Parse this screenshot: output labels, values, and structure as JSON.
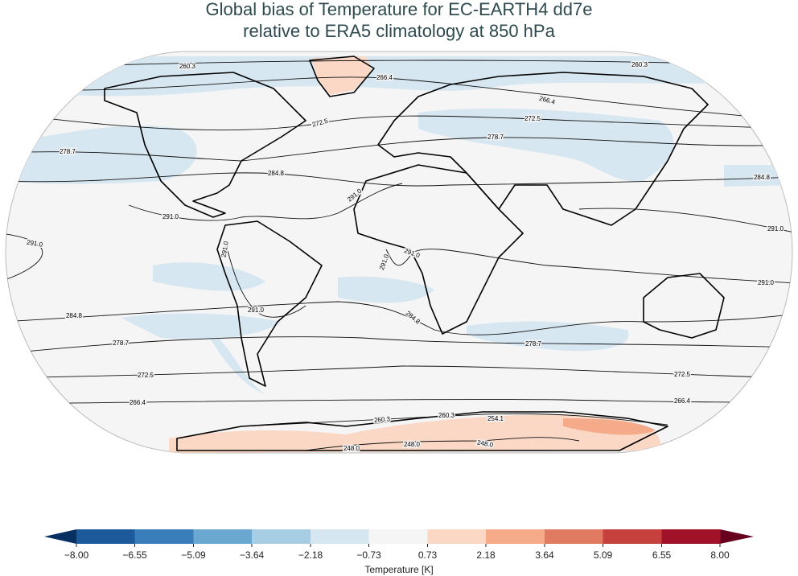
{
  "title": [
    "Global bias of Temperature for EC-EARTH4 dd7e",
    "relative to ERA5 climatology at 850 hPa"
  ],
  "contour_labels": [
    "260.3",
    "266.4",
    "260.3",
    "266.4",
    "272.5",
    "272.5",
    "278.7",
    "278.7",
    "284.8",
    "284.8",
    "291.0",
    "291.0",
    "291.0",
    "291.0",
    "291.0",
    "291.0",
    "291.0",
    "291.0",
    "291.0",
    "284.8",
    "284.8",
    "278.7",
    "278.7",
    "272.5",
    "272.5",
    "266.4",
    "266.4",
    "260.3",
    "260.3",
    "254.1",
    "248.0",
    "248.0",
    "248.0"
  ],
  "colorbar": {
    "label": "Temperature [K]",
    "lim": [
      -8,
      8
    ],
    "ticks": [
      {
        "value": -8,
        "label": "−8.00"
      },
      {
        "value": -6.55,
        "label": "−6.55"
      },
      {
        "value": -5.09,
        "label": "−5.09"
      },
      {
        "value": -3.64,
        "label": "−3.64"
      },
      {
        "value": -2.18,
        "label": "−2.18"
      },
      {
        "value": -0.73,
        "label": "−0.73"
      },
      {
        "value": 0.73,
        "label": "0.73"
      },
      {
        "value": 2.18,
        "label": "2.18"
      },
      {
        "value": 3.64,
        "label": "3.64"
      },
      {
        "value": 5.09,
        "label": "5.09"
      },
      {
        "value": 6.55,
        "label": "6.55"
      },
      {
        "value": 8,
        "label": "8.00"
      }
    ],
    "colors": [
      "#1c5a9b",
      "#3a7dbb",
      "#6aa8d1",
      "#a6cde3",
      "#d7e7f1",
      "#f5f5f5",
      "#fbd8c5",
      "#f5ab8a",
      "#e07b61",
      "#c6413e",
      "#a11228"
    ],
    "extend_colors": [
      "#053061",
      "#67001f"
    ]
  }
}
